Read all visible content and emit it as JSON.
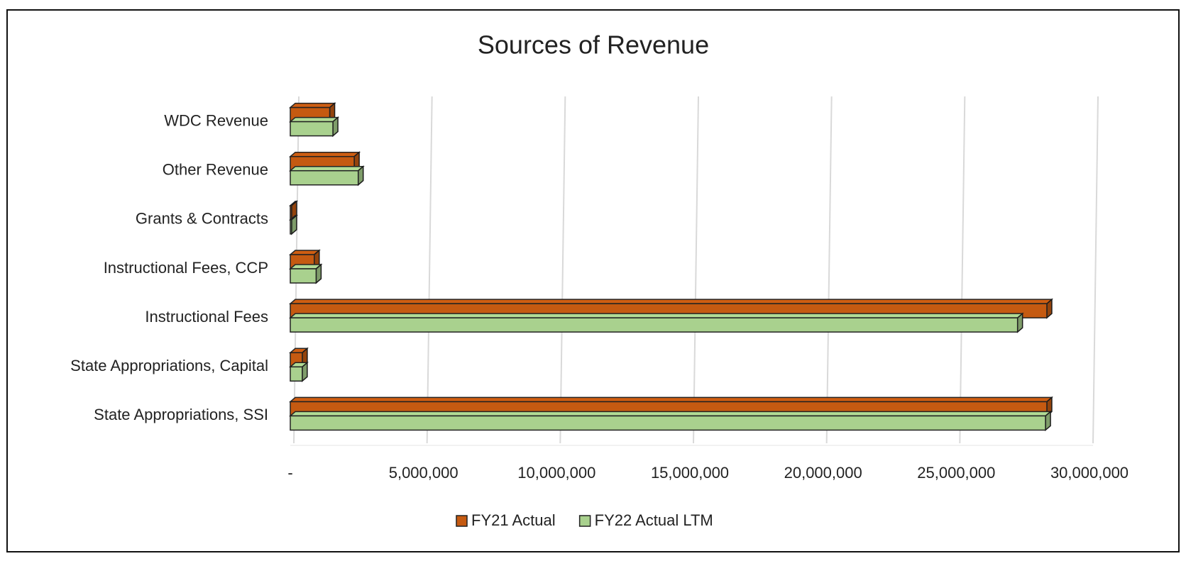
{
  "chart_data": {
    "type": "bar",
    "orientation": "horizontal",
    "title": "Sources of Revenue",
    "categories": [
      "State Appropriations, SSI",
      "State Appropriations, Capital",
      "Instructional Fees",
      "Instructional Fees, CCP",
      "Grants & Contracts",
      "Other Revenue",
      "WDC Revenue"
    ],
    "series": [
      {
        "name": "FY21 Actual",
        "color": "#c55a11",
        "values": [
          28400000,
          450000,
          28400000,
          900000,
          50000,
          2400000,
          1480000
        ]
      },
      {
        "name": "FY22 Actual LTM",
        "color": "#a9d18e",
        "values": [
          28350000,
          450000,
          27300000,
          970000,
          50000,
          2550000,
          1600000
        ]
      }
    ],
    "xlim": [
      0,
      30000000
    ],
    "xticks": [
      {
        "value": 0,
        "label": "-"
      },
      {
        "value": 5000000,
        "label": "5,000,000"
      },
      {
        "value": 10000000,
        "label": "10,000,000"
      },
      {
        "value": 15000000,
        "label": "15,000,000"
      },
      {
        "value": 20000000,
        "label": "20,000,000"
      },
      {
        "value": 25000000,
        "label": "25,000,000"
      },
      {
        "value": 30000000,
        "label": "30,000,000"
      }
    ],
    "grid": true,
    "legend": "bottom"
  }
}
